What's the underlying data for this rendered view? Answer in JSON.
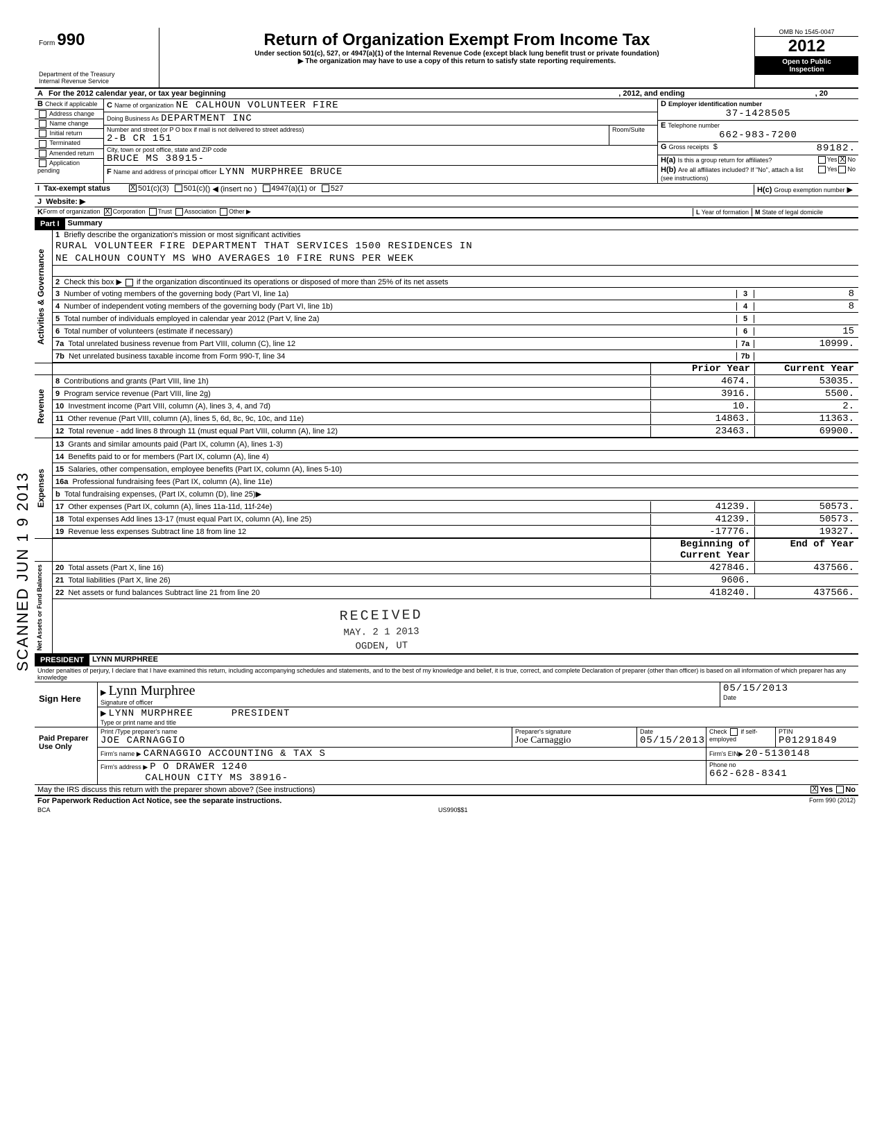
{
  "form": {
    "number": "990",
    "title": "Return of Organization Exempt From Income Tax",
    "subtitle": "Under section 501(c), 527, or 4947(a)(1) of the Internal Revenue Code (except black lung benefit trust or private foundation)",
    "note": "▶ The organization may have to use a copy of this return to satisfy state reporting requirements.",
    "dept": "Department of the Treasury",
    "irs": "Internal Revenue Service",
    "omb": "OMB No 1545-0047",
    "year": "2012",
    "open": "Open to Public",
    "inspection": "Inspection"
  },
  "A": {
    "label": "For the 2012 calendar year, or tax year beginning",
    "mid": ", 2012, and ending",
    "end": ", 20"
  },
  "B": {
    "check_if": "Check if applicable",
    "items": [
      "Address change",
      "Name change",
      "Initial return",
      "Terminated",
      "Amended return",
      "Application pending"
    ]
  },
  "C": {
    "name_label": "Name of organization",
    "name": "NE CALHOUN VOLUNTEER FIRE",
    "dba_label": "Doing Business As",
    "dba": "DEPARTMENT INC",
    "addr_label": "Number and street (or P O box if mail is not delivered to street address)",
    "addr": "2-B CR 151",
    "room_label": "Room/Suite",
    "city_label": "City, town or post office, state and ZIP code",
    "city": "BRUCE MS 38915-",
    "F_label": "Name and address of principal officer",
    "F": "LYNN MURPHREE BRUCE"
  },
  "D": {
    "label": "Employer identification number",
    "value": "37-1428505"
  },
  "E": {
    "label": "Telephone number",
    "value": "662-983-7200"
  },
  "G": {
    "label": "Gross receipts",
    "value": "89182."
  },
  "H": {
    "a": "Is this a group return for affiliates?",
    "b": "Are all affiliates included? If \"No\", attach a list (see instructions)",
    "c": "Group exemption number",
    "yes": "Yes",
    "no": "No"
  },
  "I": {
    "label": "Tax-exempt status",
    "c3": "501(c)(3)",
    "c": "501(c)(",
    "insert": ") ◀ (insert no )",
    "a1": "4947(a)(1) or",
    "s527": "527"
  },
  "J": {
    "label": "Website: ▶"
  },
  "K": {
    "label": "Form of organization",
    "corp": "Corporation",
    "trust": "Trust",
    "assoc": "Association",
    "other": "Other ▶"
  },
  "L": {
    "label": "Year of formation"
  },
  "M": {
    "label": "State of legal domicile"
  },
  "part1": {
    "title": "Part I",
    "name": "Summary",
    "vcat1": "Activities & Governance",
    "vcat2": "Revenue",
    "vcat3": "Expenses",
    "vcat4": "Net Assets or Fund Balances",
    "l1_label": "Briefly describe the organization's mission or most significant activities",
    "l1_a": "RURAL VOLUNTEER FIRE DEPARTMENT THAT SERVICES 1500 RESIDENCES IN",
    "l1_b": "NE CALHOUN COUNTY MS WHO AVERAGES 10 FIRE RUNS PER WEEK",
    "l2": "Check this box ▶",
    "l2b": "if the organization discontinued its operations or disposed of more than 25% of its net assets",
    "rows": [
      {
        "n": "3",
        "label": "Number of voting members of the governing body (Part VI, line 1a)",
        "v": "8"
      },
      {
        "n": "4",
        "label": "Number of independent voting members of the governing body (Part VI, line 1b)",
        "v": "8"
      },
      {
        "n": "5",
        "label": "Total number of individuals employed in calendar year 2012 (Part V, line 2a)",
        "v": ""
      },
      {
        "n": "6",
        "label": "Total number of volunteers (estimate if necessary)",
        "v": "15"
      },
      {
        "n": "7a",
        "label": "Total unrelated business revenue from Part VIII, column (C), line 12",
        "v": "10999."
      },
      {
        "n": "7b",
        "label": "Net unrelated business taxable income from Form 990-T, line 34",
        "v": ""
      }
    ],
    "prior": "Prior Year",
    "current": "Current Year",
    "rev": [
      {
        "n": "8",
        "label": "Contributions and grants (Part VIII, line 1h)",
        "p": "4674.",
        "c": "53035."
      },
      {
        "n": "9",
        "label": "Program service revenue (Part VIII, line 2g)",
        "p": "3916.",
        "c": "5500."
      },
      {
        "n": "10",
        "label": "Investment income (Part VIII, column (A), lines 3, 4, and 7d)",
        "p": "10.",
        "c": "2."
      },
      {
        "n": "11",
        "label": "Other revenue (Part VIII, column (A), lines 5, 6d, 8c, 9c, 10c, and 11e)",
        "p": "14863.",
        "c": "11363."
      },
      {
        "n": "12",
        "label": "Total revenue - add lines 8 through 11 (must equal Part VIII, column (A), line 12)",
        "p": "23463.",
        "c": "69900."
      }
    ],
    "exp": [
      {
        "n": "13",
        "label": "Grants and similar amounts paid (Part IX, column (A), lines 1-3)",
        "p": "",
        "c": ""
      },
      {
        "n": "14",
        "label": "Benefits paid to or for members (Part IX, column (A), line 4)",
        "p": "",
        "c": ""
      },
      {
        "n": "15",
        "label": "Salaries, other compensation, employee benefits (Part IX, column (A), lines 5-10)",
        "p": "",
        "c": ""
      },
      {
        "n": "16a",
        "label": "Professional fundraising fees (Part IX, column (A), line 11e)",
        "p": "",
        "c": ""
      },
      {
        "n": "b",
        "label": "Total fundraising expenses, (Part IX, column (D), line 25)▶",
        "p": "",
        "c": ""
      },
      {
        "n": "17",
        "label": "Other expenses (Part IX, column (A), lines 11a-11d, 11f-24e)",
        "p": "41239.",
        "c": "50573."
      },
      {
        "n": "18",
        "label": "Total expenses Add lines 13-17 (must equal Part IX, column (A), line 25)",
        "p": "41239.",
        "c": "50573."
      },
      {
        "n": "19",
        "label": "Revenue less expenses Subtract line 18 from line 12",
        "p": "-17776.",
        "c": "19327."
      }
    ],
    "boy": "Beginning of Current Year",
    "eoy": "End of Year",
    "net": [
      {
        "n": "20",
        "label": "Total assets (Part X, line 16)",
        "p": "427846.",
        "c": "437566."
      },
      {
        "n": "21",
        "label": "Total liabilities (Part X, line 26)",
        "p": "9606.",
        "c": ""
      },
      {
        "n": "22",
        "label": "Net assets or fund balances Subtract line 21 from line 20",
        "p": "418240.",
        "c": "437566."
      }
    ]
  },
  "part2": {
    "title": "PRESIDENT",
    "name": "LYNN MURPHREE",
    "perjury": "Under penalties of perjury, I declare that I have examined this return, including accompanying schedules and statements, and to the best of my knowledge and belief, it is true, correct, and complete Declaration of preparer (other than officer) is based on all information of which preparer has any knowledge",
    "sign_here": "Sign Here",
    "sig_label": "Signature of officer",
    "sig": "Lynn Murphree",
    "date_label": "Date",
    "date": "05/15/2013",
    "name_label": "Type or print name and title",
    "paid": "Paid Preparer Use Only",
    "prep_name_label": "Print /Type preparer's name",
    "prep_name": "JOE CARNAGGIO",
    "prep_sig_label": "Preparer's signature",
    "prep_sig": "Joe Carnaggio",
    "prep_date_label": "Date",
    "prep_date": "05/15/2013",
    "check_label": "Check",
    "self_emp": "if self-employed",
    "ptin_label": "PTIN",
    "ptin": "P01291849",
    "firm_label": "Firm's name ▶",
    "firm": "CARNAGGIO ACCOUNTING & TAX S",
    "ein_label": "Firm's EIN▶",
    "ein": "20-5130148",
    "addr_label": "Firm's address ▶",
    "addr1": "P O DRAWER 1240",
    "addr2": "CALHOUN CITY MS 38916-",
    "phone_label": "Phone no",
    "phone": "662-628-8341",
    "discuss": "May the IRS discuss this return with the preparer shown above? (See instructions)",
    "paperwork": "For Paperwork Reduction Act Notice, see the separate instructions.",
    "footer_form": "Form 990 (2012)",
    "bca": "BCA",
    "us990": "US990$$1"
  },
  "stamp": {
    "side": "SCANNED JUN 1 9 2013",
    "received": "RECEIVED",
    "rec_date": "MAY. 2 1 2013",
    "rec_org": "OGDEN, UT"
  }
}
